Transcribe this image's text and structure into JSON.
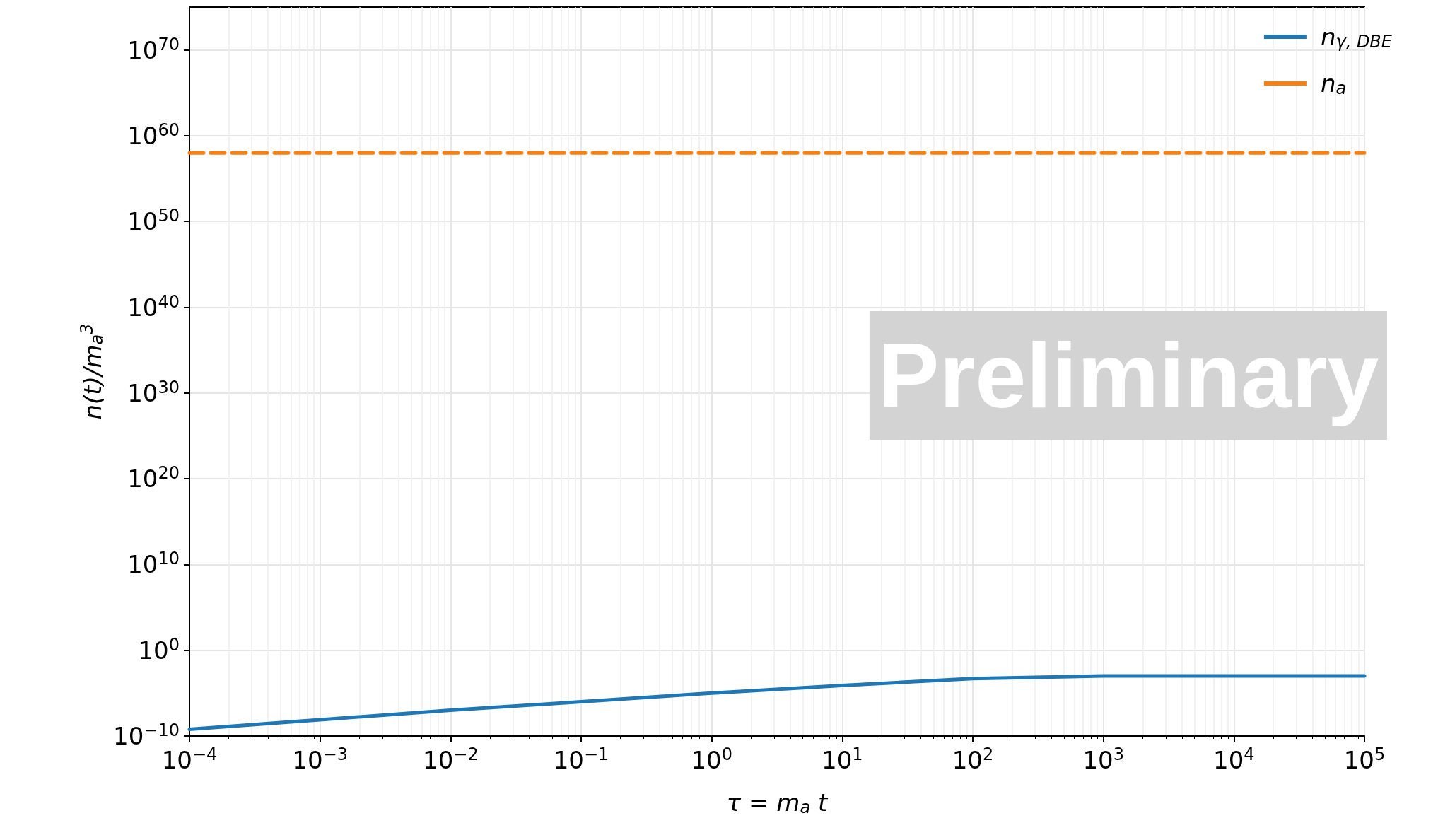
{
  "chart_data": {
    "type": "line",
    "xlabel": "τ = m$_{a}$ t",
    "ylabel": "n(t)/m$_{a}$$^{3}$",
    "log": "xy",
    "grid": true,
    "legend": "top right",
    "xlim": [
      0.0001,
      100000
    ],
    "xticks": [
      {
        "value": 0.0001,
        "label": "10$^{−4}$"
      },
      {
        "value": 0.001,
        "label": "10$^{−3}$"
      },
      {
        "value": 0.01,
        "label": "10$^{−2}$"
      },
      {
        "value": 0.1,
        "label": "10$^{−1}$"
      },
      {
        "value": 1,
        "label": "10$^{0}$"
      },
      {
        "value": 10,
        "label": "10$^{1}$"
      },
      {
        "value": 100,
        "label": "10$^{2}$"
      },
      {
        "value": 1000,
        "label": "10$^{3}$"
      },
      {
        "value": 10000,
        "label": "10$^{4}$"
      },
      {
        "value": 100000,
        "label": "10$^{5}$"
      }
    ],
    "ylim": [
      1e-10,
      1e+75
    ],
    "yticks": [
      {
        "value": 1e-10,
        "label": "10$^{−10}$"
      },
      {
        "value": 1,
        "label": "10$^{0}$"
      },
      {
        "value": 10000000000.0,
        "label": "10$^{10}$"
      },
      {
        "value": 1e+20,
        "label": "10$^{20}$"
      },
      {
        "value": 1e+30,
        "label": "10$^{30}$"
      },
      {
        "value": 1e+40,
        "label": "10$^{40}$"
      },
      {
        "value": 1e+50,
        "label": "10$^{50}$"
      },
      {
        "value": 1e+60,
        "label": "10$^{60}$"
      },
      {
        "value": 1e+70,
        "label": "10$^{70}$"
      }
    ],
    "annotations": [
      "Preliminary"
    ],
    "series": [
      {
        "name": "n$_{γ, DBE}$",
        "color": "#1f77b4",
        "line_style": "solid",
        "x": [
          0.0001,
          0.001,
          0.01,
          0.1,
          1,
          10,
          100,
          1000,
          10000,
          100000
        ],
        "values": [
          6e-10,
          8e-09,
          1e-07,
          1e-06,
          1e-05,
          8e-05,
          0.0005,
          0.001,
          0.001,
          0.001
        ]
      },
      {
        "name": "n$_{a}$",
        "color": "#ff7f0e",
        "line_style": "dashed",
        "x": [
          0.0001,
          100000
        ],
        "values": [
          1e+58,
          1e+58
        ]
      }
    ]
  }
}
